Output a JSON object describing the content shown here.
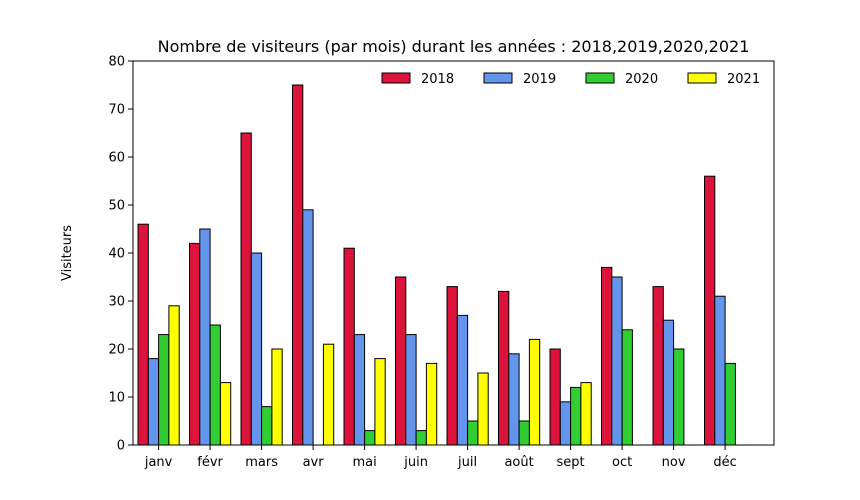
{
  "chart_data": {
    "type": "bar",
    "title": "Nombre de visiteurs (par mois) durant les années : 2018,2019,2020,2021",
    "xlabel": "",
    "ylabel": "Visiteurs",
    "ylim": [
      0,
      80
    ],
    "yticks": [
      0,
      10,
      20,
      30,
      40,
      50,
      60,
      70,
      80
    ],
    "grid": false,
    "legend_position": "top-right",
    "categories": [
      "janv",
      "févr",
      "mars",
      "avr",
      "mai",
      "juin",
      "juil",
      "août",
      "sept",
      "oct",
      "nov",
      "déc"
    ],
    "series": [
      {
        "name": "2018",
        "color": "#dc143c",
        "values": [
          46,
          42,
          65,
          75,
          41,
          35,
          33,
          32,
          20,
          37,
          33,
          56
        ]
      },
      {
        "name": "2019",
        "color": "#6495ed",
        "values": [
          18,
          45,
          40,
          49,
          23,
          23,
          27,
          19,
          9,
          35,
          26,
          31
        ]
      },
      {
        "name": "2020",
        "color": "#32cd32",
        "values": [
          23,
          25,
          8,
          0,
          3,
          3,
          5,
          5,
          12,
          24,
          20,
          17
        ]
      },
      {
        "name": "2021",
        "color": "#ffff00",
        "values": [
          29,
          13,
          20,
          21,
          18,
          17,
          15,
          22,
          13,
          0,
          0,
          0
        ]
      }
    ]
  }
}
